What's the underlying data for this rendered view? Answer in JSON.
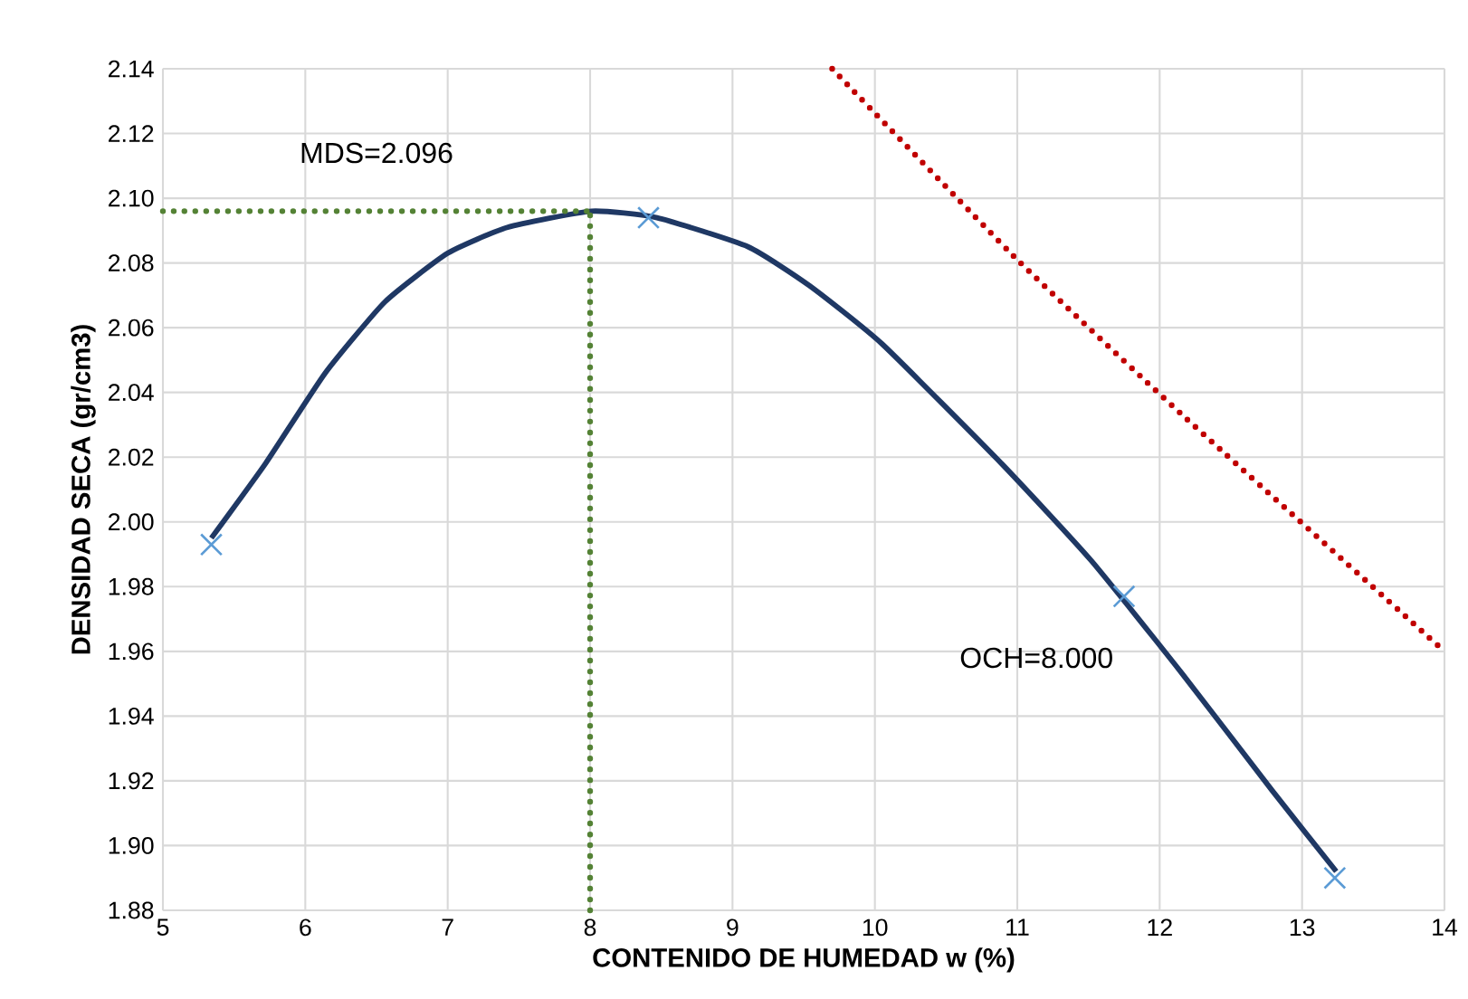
{
  "chart_data": {
    "type": "line",
    "xlabel": "CONTENIDO DE HUMEDAD w (%)",
    "ylabel": "DENSIDAD SECA (gr/cm3)",
    "annotations": [
      "MDS=2.096",
      "OCH=8.000"
    ],
    "series": [
      {
        "color": "#1f3864",
        "line_style": "solid",
        "marker": "none",
        "x": [
          5.34,
          5.72,
          6.14,
          6.56,
          7.0,
          7.42,
          8.01,
          8.47,
          9.11,
          9.54,
          10.05,
          10.89,
          11.52,
          12.16,
          12.79,
          13.24
        ],
        "values": [
          1.995,
          2.018,
          2.046,
          2.068,
          2.083,
          2.091,
          2.096,
          2.094,
          2.085,
          2.073,
          2.055,
          2.018,
          1.988,
          1.953,
          1.917,
          1.892
        ]
      },
      {
        "type": "scatter",
        "color": "#5b9bd5",
        "marker": "cross",
        "x": [
          5.34,
          8.41,
          11.75,
          13.23
        ],
        "values": [
          1.993,
          2.094,
          1.977,
          1.89
        ]
      },
      {
        "color": "#c00000",
        "line_style": "dotted",
        "marker": "none",
        "x": [
          9.7,
          11.0,
          12.16,
          14.0
        ],
        "values": [
          2.14,
          2.081,
          2.033,
          1.96
        ]
      },
      {
        "color": "#548235",
        "line_style": "dotted",
        "marker": "none",
        "x": [
          5,
          8
        ],
        "values": [
          2.096,
          2.096
        ]
      },
      {
        "color": "#548235",
        "line_style": "dotted",
        "marker": "none",
        "x": [
          8,
          8
        ],
        "values": [
          1.88,
          2.096
        ]
      }
    ],
    "xlim": [
      5,
      14
    ],
    "xticks": [
      5,
      6,
      7,
      8,
      9,
      10,
      11,
      12,
      13,
      14
    ],
    "ylim": [
      1.88,
      2.14
    ],
    "yticks": [
      {
        "value": 1.88,
        "label": "1.88"
      },
      {
        "value": 1.9,
        "label": "1.90"
      },
      {
        "value": 1.92,
        "label": "1.92"
      },
      {
        "value": 1.94,
        "label": "1.94"
      },
      {
        "value": 1.96,
        "label": "1.96"
      },
      {
        "value": 1.98,
        "label": "1.98"
      },
      {
        "value": 2.0,
        "label": "2.00"
      },
      {
        "value": 2.02,
        "label": "2.02"
      },
      {
        "value": 2.04,
        "label": "2.04"
      },
      {
        "value": 2.06,
        "label": "2.06"
      },
      {
        "value": 2.08,
        "label": "2.08"
      },
      {
        "value": 2.1,
        "label": "2.10"
      },
      {
        "value": 2.12,
        "label": "2.12"
      },
      {
        "value": 2.14,
        "label": "2.14"
      }
    ],
    "grid": true
  }
}
